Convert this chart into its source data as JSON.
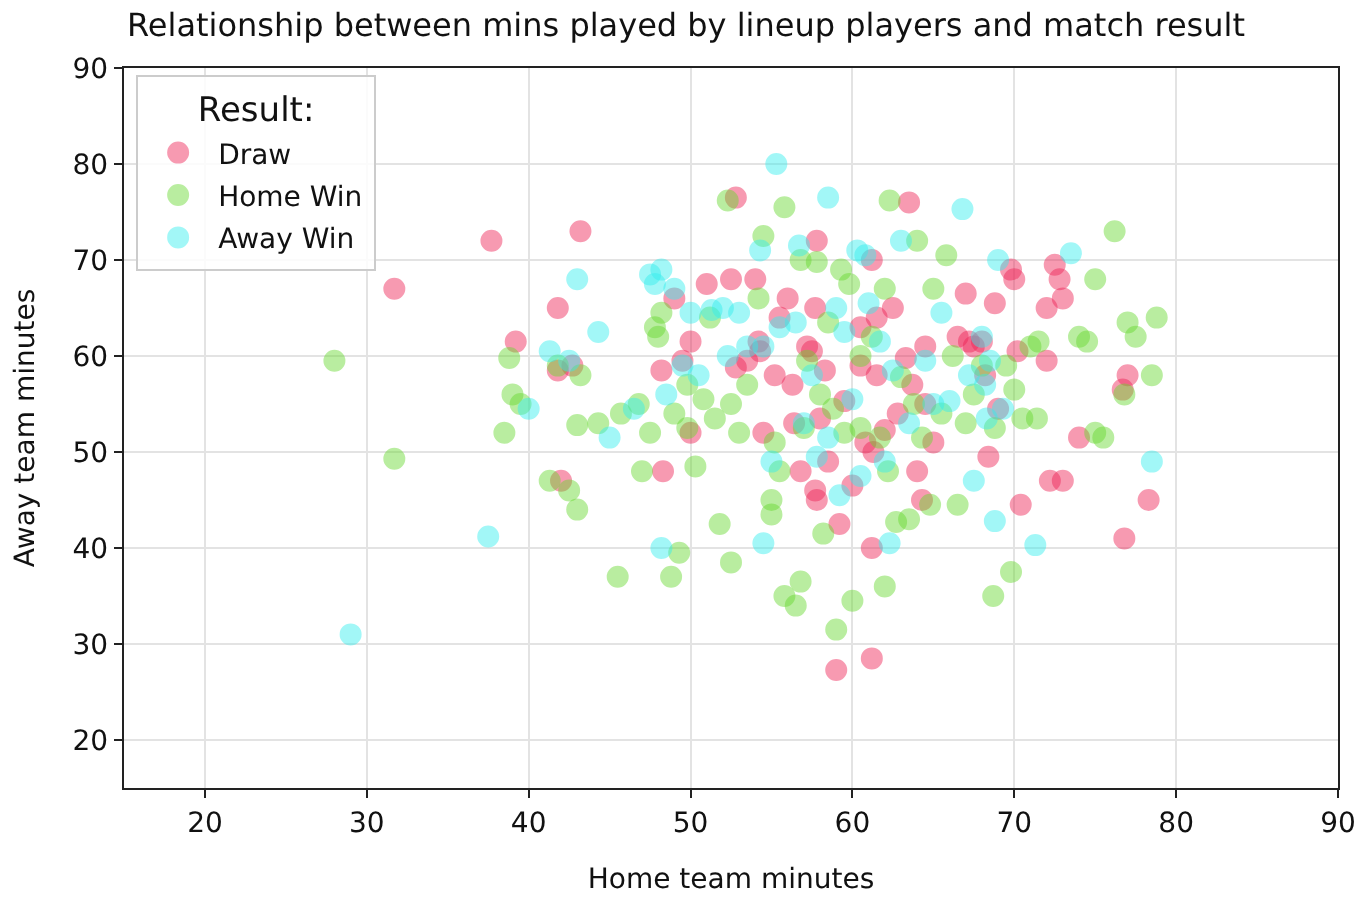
{
  "chart_data": {
    "type": "scatter",
    "title": "Relationship between mins played by lineup players and match result",
    "xlabel": "Home team minutes",
    "ylabel": "Away team minutes",
    "legend_title": "Result:",
    "legend": "top left",
    "grid": true,
    "marker": "circle",
    "xlim": [
      15,
      90
    ],
    "xticks": [
      20,
      30,
      40,
      50,
      60,
      70,
      80,
      90
    ],
    "ylim": [
      15,
      90
    ],
    "yticks": [
      20,
      30,
      40,
      50,
      60,
      70,
      80,
      90
    ],
    "series": [
      {
        "name": "Draw",
        "color": "#ee2255",
        "x": [
          31.7,
          37.7,
          39.2,
          41.8,
          42.7,
          41.8,
          42,
          43.2,
          48.2,
          48.3,
          49,
          49.5,
          50,
          50,
          51,
          52.5,
          52.8,
          52.8,
          53.5,
          54.2,
          54.3,
          54,
          54.5,
          55.2,
          55.5,
          56,
          56.3,
          56.4,
          56.8,
          57.2,
          57.5,
          57.7,
          57.8,
          57.7,
          57.8,
          58,
          58.3,
          58.5,
          59,
          59.2,
          59.5,
          60,
          60.5,
          60.5,
          60.8,
          61.2,
          61.2,
          61.2,
          61.3,
          61.5,
          61.5,
          62,
          62.5,
          62.8,
          63.3,
          63.5,
          63.7,
          64,
          64.3,
          64.5,
          64.5,
          65,
          66.5,
          67,
          67.2,
          67.5,
          68,
          68.2,
          68.4,
          68.8,
          69,
          69.8,
          70,
          70.2,
          70.4,
          72,
          72.2,
          72.5,
          72.8,
          73,
          73,
          74,
          76.7,
          76.8,
          77,
          78.3,
          72
        ],
        "values": [
          67,
          72,
          61.5,
          65,
          59,
          58.5,
          47,
          73,
          58.5,
          48,
          66,
          59.5,
          52,
          61.5,
          67.5,
          68,
          76.5,
          58.8,
          59.5,
          61.5,
          60.5,
          68,
          52,
          58,
          64,
          66,
          57,
          53,
          48,
          61,
          60.5,
          65,
          72,
          46,
          45,
          53.5,
          58.5,
          49,
          27.3,
          42.5,
          55.3,
          46.5,
          59,
          63,
          51,
          40,
          28.5,
          70,
          50,
          64,
          58,
          52.3,
          65,
          54,
          59.8,
          76,
          57,
          48,
          45,
          55,
          61,
          51,
          62,
          66.5,
          61.5,
          61,
          61.5,
          58,
          49.5,
          65.5,
          54.5,
          69,
          68,
          60.5,
          44.5,
          65,
          47,
          69.5,
          68,
          47,
          66,
          51.5,
          56.5,
          41,
          58,
          45,
          59.5
        ]
      },
      {
        "name": "Home Win",
        "color": "#66d92e",
        "x": [
          28,
          31.7,
          38.5,
          38.8,
          39,
          39.5,
          41.3,
          41.8,
          42.5,
          43,
          43,
          43.2,
          44.3,
          45.5,
          45.7,
          46.8,
          47,
          47.5,
          47.8,
          48,
          48.2,
          48.8,
          49,
          49.3,
          49.8,
          49.8,
          50.3,
          50.8,
          51.2,
          51.5,
          51.8,
          52.3,
          52.5,
          52.5,
          53,
          53.5,
          54.2,
          54.5,
          55,
          55,
          55.2,
          55.5,
          55.8,
          55.8,
          56.5,
          56.8,
          56.8,
          57,
          57.2,
          57.8,
          58,
          58.2,
          58.5,
          58.8,
          59,
          59.3,
          59.5,
          59.8,
          60,
          60.5,
          60.5,
          61.2,
          61.7,
          62,
          62,
          62.2,
          62.3,
          62.7,
          63,
          63.5,
          63.8,
          64,
          64.3,
          64.8,
          65,
          65.5,
          65.8,
          66.2,
          66.5,
          67,
          67.5,
          68,
          68.7,
          68.8,
          69.5,
          69.8,
          70,
          70.5,
          71,
          71.4,
          71.5,
          74,
          74.5,
          75,
          75,
          75.5,
          76.2,
          76.8,
          77,
          77.5,
          78.5,
          78.8
        ],
        "values": [
          59.5,
          49.3,
          52,
          59.8,
          56,
          55,
          47,
          59,
          46,
          52.8,
          44,
          58,
          53,
          37,
          54,
          55,
          48,
          52,
          63,
          62,
          64.5,
          37,
          54,
          39.5,
          57,
          52.5,
          48.5,
          55.5,
          64,
          53.5,
          42.5,
          76.2,
          55,
          38.5,
          52,
          57,
          66,
          72.5,
          45,
          43.5,
          51,
          48,
          75.5,
          35,
          34,
          36.5,
          70,
          52.5,
          59.5,
          69.8,
          56,
          41.5,
          63.5,
          54.5,
          31.5,
          69,
          52,
          67.5,
          34.5,
          52.5,
          60,
          62,
          51.5,
          36,
          67,
          48,
          76.2,
          42.7,
          57.8,
          43,
          55,
          72,
          51.5,
          44.5,
          67,
          54,
          70.5,
          60,
          44.5,
          53,
          56,
          59,
          35,
          52.5,
          59,
          37.5,
          56.5,
          53.5,
          61,
          53.5,
          61.5,
          62,
          61.5,
          68,
          52,
          51.5,
          73,
          56,
          63.5,
          62,
          58,
          64
        ]
      },
      {
        "name": "Away Win",
        "color": "#33eeee",
        "x": [
          29,
          37.5,
          40,
          41.3,
          42.5,
          43,
          44.3,
          45,
          46.5,
          47.5,
          47.8,
          48.2,
          48.2,
          48.5,
          49,
          49.5,
          50,
          50.5,
          51.3,
          52,
          52.3,
          53,
          53.5,
          54.3,
          54.5,
          54.5,
          55,
          55.3,
          55.5,
          56.5,
          56.7,
          57,
          57.5,
          57.8,
          58.5,
          58.5,
          59,
          59.2,
          59.5,
          60,
          60.3,
          60.5,
          60.8,
          61,
          61.7,
          62,
          62.3,
          62.5,
          63,
          63.5,
          64.5,
          65,
          65.5,
          66,
          66.8,
          67.2,
          67.5,
          68,
          68.2,
          68.3,
          68.5,
          68.8,
          69,
          69.3,
          71.3,
          73.5,
          78.5
        ],
        "values": [
          31,
          41.2,
          54.5,
          60.5,
          59.5,
          68,
          62.5,
          51.5,
          54.5,
          68.5,
          67.5,
          69,
          40,
          56,
          67,
          59,
          64.5,
          58,
          64.8,
          65,
          60,
          64.5,
          61,
          71,
          61,
          40.5,
          49,
          80,
          63,
          63.5,
          71.5,
          53,
          58,
          49.5,
          76.5,
          51.5,
          65,
          45.5,
          62.5,
          55.5,
          71,
          47.5,
          70.5,
          65.5,
          61.5,
          49,
          40.5,
          58.5,
          72,
          53,
          59.5,
          55,
          64.5,
          55.3,
          75.3,
          58,
          47,
          62,
          57,
          53.5,
          59.5,
          42.8,
          70,
          54.5,
          40.3,
          70.7,
          49
        ]
      }
    ]
  }
}
